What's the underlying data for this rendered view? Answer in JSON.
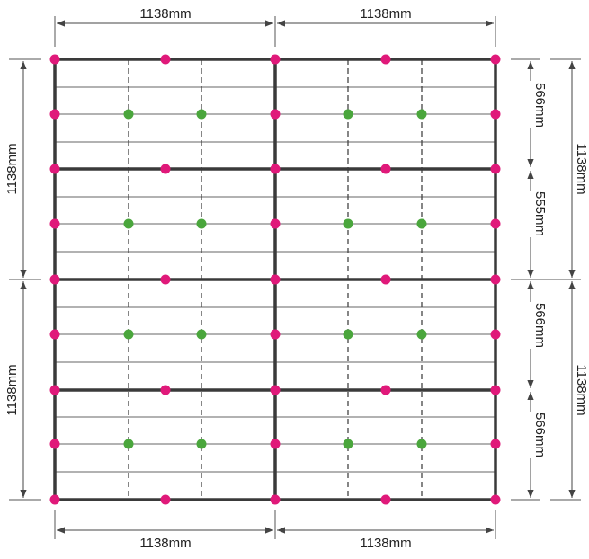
{
  "dimensions": {
    "top_left": "1138mm",
    "top_right": "1138mm",
    "bottom_left": "1138mm",
    "bottom_right": "1138mm",
    "left_upper": "1138mm",
    "left_lower": "1138mm",
    "right_upper": "1138mm",
    "right_lower": "1138mm",
    "inner_right_1": "566mm",
    "inner_right_2": "555mm",
    "inner_right_3": "566mm",
    "inner_right_4": "566mm"
  },
  "colors": {
    "frame": "#3a3a3a",
    "thin_line": "#555555",
    "dimension_line": "#444444",
    "magenta_point": "#e0197a",
    "green_point": "#4aa63c"
  }
}
